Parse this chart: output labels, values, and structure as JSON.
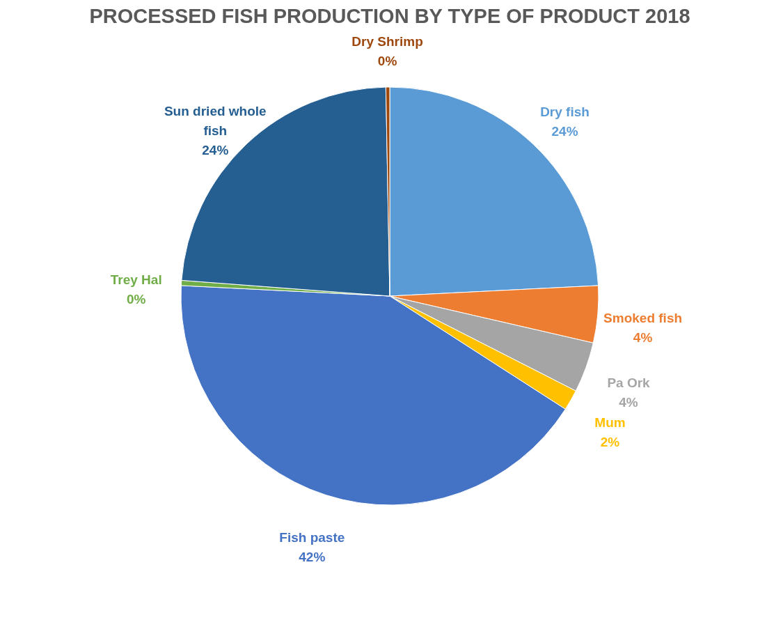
{
  "chart_data": {
    "type": "pie",
    "title": "PROCESSED FISH PRODUCTION BY TYPE OF PRODUCT 2018",
    "categories": [
      "Dry fish",
      "Smoked fish",
      "Pa Ork",
      "Mum",
      "Fish paste",
      "Trey Hal",
      "Sun dried whole fish",
      "Dry Shrimp"
    ],
    "values": [
      24.2,
      4.4,
      3.9,
      1.6,
      41.7,
      0.4,
      23.5,
      0.3
    ],
    "value_labels": [
      "24%",
      "4%",
      "4%",
      "2%",
      "42%",
      "0%",
      "24%",
      "0%"
    ],
    "colors": [
      "#5b9bd5",
      "#ed7d31",
      "#a5a5a5",
      "#ffc000",
      "#4472c4",
      "#70ad47",
      "#255e91",
      "#9e480e"
    ],
    "legend": false
  }
}
